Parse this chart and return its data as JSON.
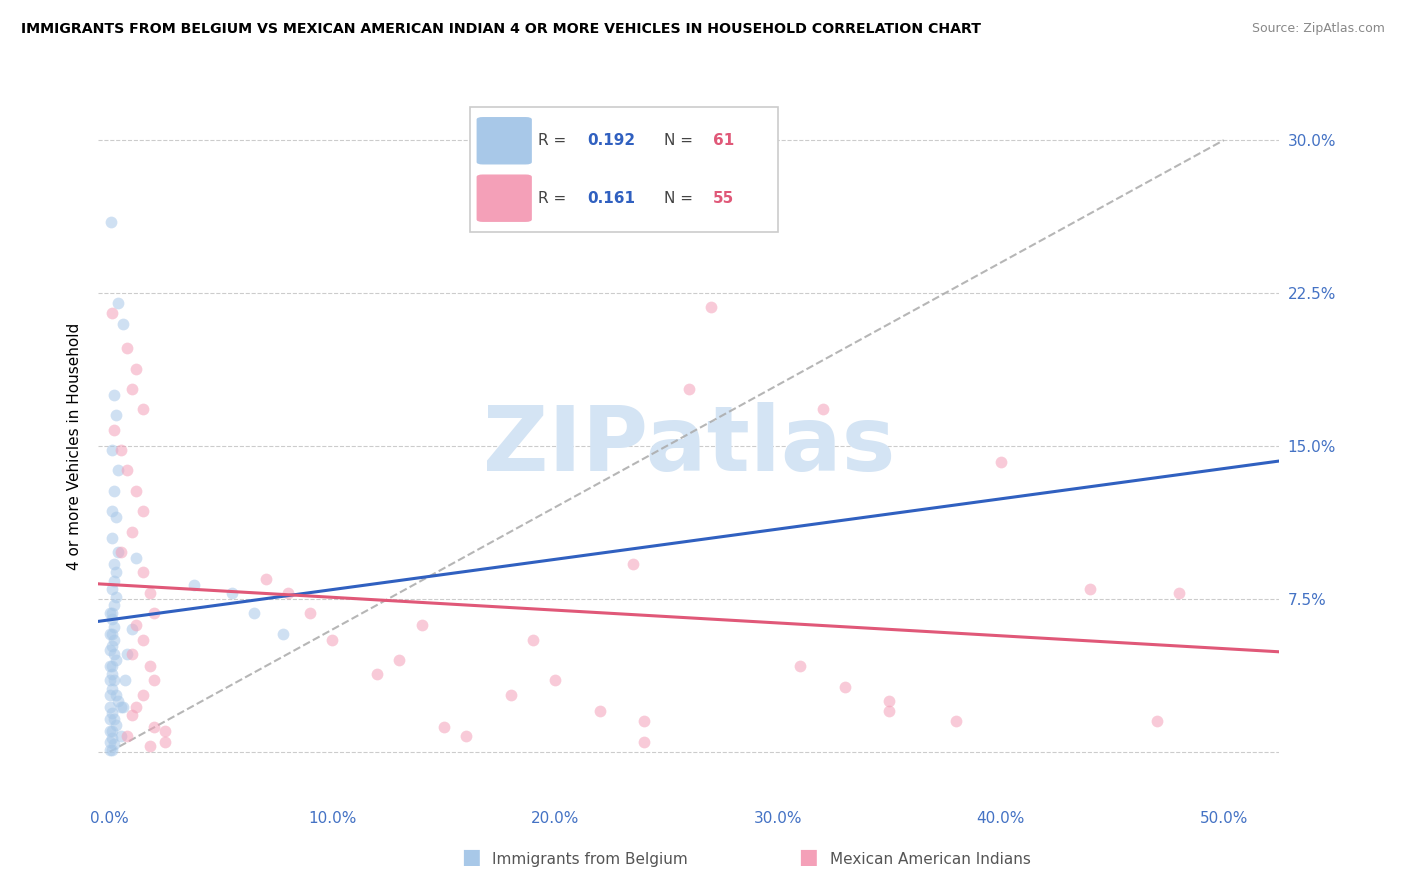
{
  "title": "IMMIGRANTS FROM BELGIUM VS MEXICAN AMERICAN INDIAN 4 OR MORE VEHICLES IN HOUSEHOLD CORRELATION CHART",
  "source": "Source: ZipAtlas.com",
  "ylabel": "4 or more Vehicles in Household",
  "xticklabels": [
    "0.0%",
    "10.0%",
    "20.0%",
    "30.0%",
    "40.0%",
    "50.0%"
  ],
  "xticks": [
    0.0,
    0.1,
    0.2,
    0.3,
    0.4,
    0.5
  ],
  "ytick_labels": [
    "",
    "7.5%",
    "15.0%",
    "22.5%",
    "30.0%"
  ],
  "yticks": [
    0.0,
    0.075,
    0.15,
    0.225,
    0.3
  ],
  "xlim": [
    -0.005,
    0.525
  ],
  "ylim": [
    -0.025,
    0.325
  ],
  "blue_color": "#a8c8e8",
  "pink_color": "#f4a0b8",
  "blue_line_color": "#3060c0",
  "pink_line_color": "#e05878",
  "tick_color": "#4472c4",
  "marker_size": 72,
  "marker_alpha": 0.55,
  "watermark_color": "#d4e4f4",
  "blue_scatter": [
    [
      0.0005,
      0.26
    ],
    [
      0.004,
      0.22
    ],
    [
      0.006,
      0.21
    ],
    [
      0.002,
      0.175
    ],
    [
      0.003,
      0.165
    ],
    [
      0.001,
      0.148
    ],
    [
      0.004,
      0.138
    ],
    [
      0.002,
      0.128
    ],
    [
      0.001,
      0.118
    ],
    [
      0.003,
      0.115
    ],
    [
      0.001,
      0.105
    ],
    [
      0.004,
      0.098
    ],
    [
      0.002,
      0.092
    ],
    [
      0.003,
      0.088
    ],
    [
      0.002,
      0.084
    ],
    [
      0.001,
      0.08
    ],
    [
      0.003,
      0.076
    ],
    [
      0.002,
      0.072
    ],
    [
      0.001,
      0.068
    ],
    [
      0.001,
      0.065
    ],
    [
      0.002,
      0.061
    ],
    [
      0.001,
      0.058
    ],
    [
      0.002,
      0.055
    ],
    [
      0.001,
      0.052
    ],
    [
      0.002,
      0.048
    ],
    [
      0.003,
      0.045
    ],
    [
      0.001,
      0.042
    ],
    [
      0.001,
      0.038
    ],
    [
      0.002,
      0.035
    ],
    [
      0.001,
      0.031
    ],
    [
      0.003,
      0.028
    ],
    [
      0.004,
      0.025
    ],
    [
      0.005,
      0.022
    ],
    [
      0.001,
      0.019
    ],
    [
      0.002,
      0.016
    ],
    [
      0.003,
      0.013
    ],
    [
      0.001,
      0.01
    ],
    [
      0.001,
      0.007
    ],
    [
      0.002,
      0.004
    ],
    [
      0.001,
      0.001
    ],
    [
      0.0002,
      0.068
    ],
    [
      0.0002,
      0.058
    ],
    [
      0.0002,
      0.05
    ],
    [
      0.0002,
      0.042
    ],
    [
      0.0002,
      0.035
    ],
    [
      0.0002,
      0.028
    ],
    [
      0.0002,
      0.022
    ],
    [
      0.0002,
      0.016
    ],
    [
      0.0002,
      0.01
    ],
    [
      0.0002,
      0.005
    ],
    [
      0.0002,
      0.001
    ],
    [
      0.038,
      0.082
    ],
    [
      0.055,
      0.078
    ],
    [
      0.065,
      0.068
    ],
    [
      0.078,
      0.058
    ],
    [
      0.012,
      0.095
    ],
    [
      0.01,
      0.06
    ],
    [
      0.008,
      0.048
    ],
    [
      0.007,
      0.035
    ],
    [
      0.006,
      0.022
    ],
    [
      0.005,
      0.008
    ]
  ],
  "pink_scatter": [
    [
      0.001,
      0.215
    ],
    [
      0.008,
      0.198
    ],
    [
      0.012,
      0.188
    ],
    [
      0.01,
      0.178
    ],
    [
      0.015,
      0.168
    ],
    [
      0.002,
      0.158
    ],
    [
      0.005,
      0.148
    ],
    [
      0.008,
      0.138
    ],
    [
      0.012,
      0.128
    ],
    [
      0.015,
      0.118
    ],
    [
      0.01,
      0.108
    ],
    [
      0.005,
      0.098
    ],
    [
      0.015,
      0.088
    ],
    [
      0.018,
      0.078
    ],
    [
      0.02,
      0.068
    ],
    [
      0.012,
      0.062
    ],
    [
      0.015,
      0.055
    ],
    [
      0.01,
      0.048
    ],
    [
      0.018,
      0.042
    ],
    [
      0.02,
      0.035
    ],
    [
      0.015,
      0.028
    ],
    [
      0.012,
      0.022
    ],
    [
      0.01,
      0.018
    ],
    [
      0.02,
      0.012
    ],
    [
      0.008,
      0.008
    ],
    [
      0.025,
      0.01
    ],
    [
      0.025,
      0.005
    ],
    [
      0.018,
      0.003
    ],
    [
      0.27,
      0.218
    ],
    [
      0.26,
      0.178
    ],
    [
      0.32,
      0.168
    ],
    [
      0.235,
      0.092
    ],
    [
      0.4,
      0.142
    ],
    [
      0.44,
      0.08
    ],
    [
      0.48,
      0.078
    ],
    [
      0.19,
      0.055
    ],
    [
      0.2,
      0.035
    ],
    [
      0.31,
      0.042
    ],
    [
      0.33,
      0.032
    ],
    [
      0.35,
      0.025
    ],
    [
      0.18,
      0.028
    ],
    [
      0.22,
      0.02
    ],
    [
      0.24,
      0.015
    ],
    [
      0.15,
      0.012
    ],
    [
      0.16,
      0.008
    ],
    [
      0.35,
      0.02
    ],
    [
      0.38,
      0.015
    ],
    [
      0.47,
      0.015
    ],
    [
      0.24,
      0.005
    ],
    [
      0.13,
      0.045
    ],
    [
      0.14,
      0.062
    ],
    [
      0.12,
      0.038
    ],
    [
      0.1,
      0.055
    ],
    [
      0.09,
      0.068
    ],
    [
      0.08,
      0.078
    ],
    [
      0.07,
      0.085
    ]
  ]
}
